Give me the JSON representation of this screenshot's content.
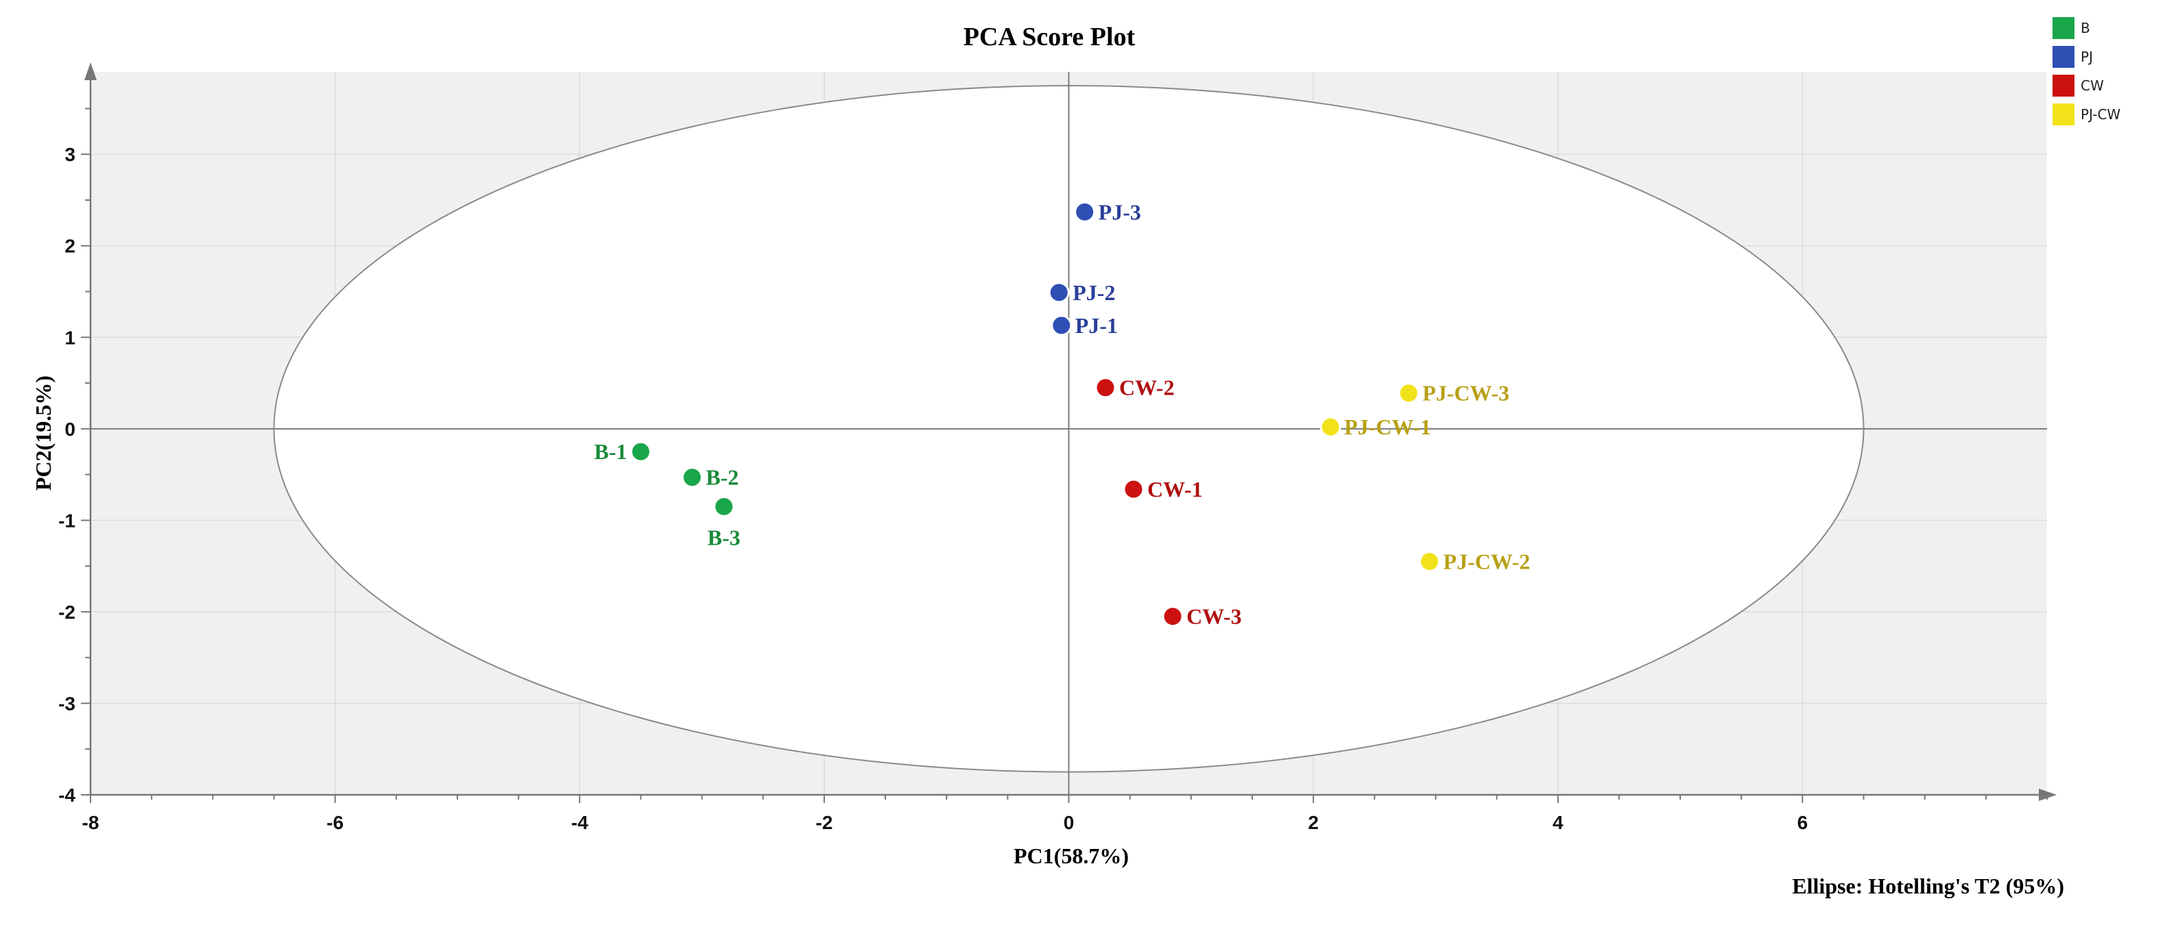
{
  "chart_data": {
    "type": "scatter",
    "title": "PCA Score Plot",
    "xlabel": "PC1(58.7%)",
    "ylabel": "PC2(19.5%)",
    "xlim": [
      -8,
      8
    ],
    "ylim": [
      -4,
      3.9
    ],
    "xticks": [
      -8,
      -6,
      -4,
      -2,
      0,
      2,
      4,
      6
    ],
    "yticks": [
      -4,
      -3,
      -2,
      -1,
      0,
      1,
      2,
      3
    ],
    "grid": true,
    "ellipse": {
      "center": [
        0,
        0
      ],
      "semi_x": 6.5,
      "semi_y": 3.75
    },
    "footnote": "Ellipse: Hotelling's T2 (95%)",
    "legend_position": "top-right",
    "series": [
      {
        "name": "B",
        "color": "#1aa64a",
        "label_color": "#1a8a3a",
        "points": [
          {
            "label": "B-1",
            "x": -3.5,
            "y": -0.25,
            "label_side": "left"
          },
          {
            "label": "B-2",
            "x": -3.08,
            "y": -0.53,
            "label_side": "right"
          },
          {
            "label": "B-3",
            "x": -2.82,
            "y": -0.85,
            "label_side": "below"
          }
        ]
      },
      {
        "name": "PJ",
        "color": "#2f4fb5",
        "label_color": "#2a3f9a",
        "points": [
          {
            "label": "PJ-3",
            "x": 0.13,
            "y": 2.37,
            "label_side": "right"
          },
          {
            "label": "PJ-2",
            "x": -0.08,
            "y": 1.49,
            "label_side": "right"
          },
          {
            "label": "PJ-1",
            "x": -0.06,
            "y": 1.13,
            "label_side": "right"
          }
        ]
      },
      {
        "name": "CW",
        "color": "#cc1111",
        "label_color": "#b01010",
        "points": [
          {
            "label": "CW-2",
            "x": 0.3,
            "y": 0.45,
            "label_side": "right"
          },
          {
            "label": "CW-1",
            "x": 0.53,
            "y": -0.66,
            "label_side": "right"
          },
          {
            "label": "CW-3",
            "x": 0.85,
            "y": -2.05,
            "label_side": "right"
          }
        ]
      },
      {
        "name": "PJ-CW",
        "color": "#f2e21a",
        "label_color": "#b8a015",
        "points": [
          {
            "label": "PJ-CW-3",
            "x": 2.78,
            "y": 0.39,
            "label_side": "right"
          },
          {
            "label": "PJ-CW-1",
            "x": 2.14,
            "y": 0.02,
            "label_side": "right"
          },
          {
            "label": "PJ-CW-2",
            "x": 2.95,
            "y": -1.45,
            "label_side": "right"
          }
        ]
      }
    ]
  }
}
